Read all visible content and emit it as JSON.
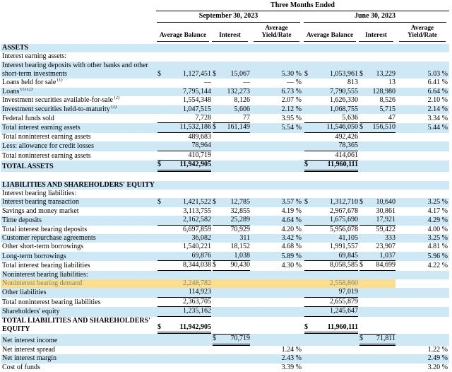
{
  "table": {
    "title": "Three Months Ended",
    "periods": [
      {
        "label": "September 30, 2023"
      },
      {
        "label": "June 30, 2023"
      }
    ],
    "columns": [
      "Average Balance",
      "Interest",
      "Average Yield/Rate"
    ],
    "colors": {
      "row_stripe_blue": "#cfe8f6",
      "highlight_yellow": "#fbdf8e",
      "highlight_text": "#858072",
      "rule_black": "#000000"
    },
    "rows": [
      {
        "label": "ASSETS",
        "bold": true,
        "bg": "b"
      },
      {
        "label": "Interest earning assets:",
        "bg": "w"
      },
      {
        "label": "Interest bearing deposits with other banks and other short-term investments",
        "bg": "b",
        "cells": [
          "$",
          "1,127,451",
          "$",
          "15,067",
          "5.30 %",
          "$",
          "1,053,961",
          "$",
          "13,229",
          "5.03 %"
        ]
      },
      {
        "label": "Loans held for sale",
        "sup": "(1)",
        "bg": "w",
        "cells": [
          "",
          "—",
          "",
          "—",
          "— %",
          "",
          "813",
          "",
          "13",
          "6.41 %"
        ]
      },
      {
        "label": "Loans",
        "sup": "(1) (2)",
        "bg": "b",
        "cells": [
          "",
          "7,795,144",
          "",
          "132,273",
          "6.73 %",
          "",
          "7,790,555",
          "",
          "128,980",
          "6.64 %"
        ]
      },
      {
        "label": "Investment securities available-for-sale",
        "sup": "(2)",
        "bg": "w",
        "cells": [
          "",
          "1,554,348",
          "",
          "8,126",
          "2.07 %",
          "",
          "1,626,330",
          "",
          "8,526",
          "2.10 %"
        ]
      },
      {
        "label": "Investment securities held-to-maturity",
        "sup": "(2)",
        "bg": "b",
        "cells": [
          "",
          "1,047,515",
          "",
          "5,606",
          "2.12 %",
          "",
          "1,068,755",
          "",
          "5,715",
          "2.14 %"
        ]
      },
      {
        "label": "Federal funds sold",
        "bg": "w",
        "cells": [
          "",
          "7,728",
          "",
          "77",
          "3.95 %",
          "",
          "5,636",
          "",
          "47",
          "3.34 %"
        ],
        "u": {
          "b1": "s",
          "i1": "s",
          "b2": "s",
          "i2": "s"
        }
      },
      {
        "label": "Total interest earning assets",
        "bg": "b",
        "cells": [
          "",
          "11,532,186",
          "$",
          "161,149",
          "5.54 %",
          "",
          "11,546,050",
          "$",
          "156,510",
          "5.44 %"
        ],
        "u": {
          "b1": "s",
          "i1": "s",
          "b2": "s",
          "i2": "s"
        }
      },
      {
        "label": "Total noninterest earning assets",
        "bg": "w",
        "cells": [
          "",
          "489,683",
          "",
          "",
          "",
          "",
          "492,426",
          "",
          "",
          ""
        ]
      },
      {
        "label": "Less: allowance for credit losses",
        "bg": "b",
        "cells": [
          "",
          "78,964",
          "",
          "",
          "",
          "",
          "78,365",
          "",
          "",
          ""
        ],
        "u": {
          "b1": "s",
          "b2": "s"
        }
      },
      {
        "label": "Total noninterest earning assets",
        "bg": "w",
        "cells": [
          "",
          "410,719",
          "",
          "",
          "",
          "",
          "414,061",
          "",
          "",
          ""
        ],
        "u": {
          "b1": "s",
          "b2": "s"
        }
      },
      {
        "label": "TOTAL ASSETS",
        "bold": true,
        "bg": "b",
        "cells": [
          "$",
          "11,942,905",
          "",
          "",
          "",
          "$",
          "11,960,111",
          "",
          "",
          ""
        ],
        "u": {
          "b1": "d",
          "b2": "d"
        }
      },
      {
        "spacer": true,
        "bg": "w"
      },
      {
        "label": "LIABILITIES AND SHAREHOLDERS' EQUITY",
        "bold": true,
        "bg": "b"
      },
      {
        "label": "Interest bearing liabilities:",
        "bg": "w"
      },
      {
        "label": "Interest bearing transaction",
        "bg": "b",
        "cells": [
          "$",
          "1,421,522",
          "$",
          "12,785",
          "3.57 %",
          "$",
          "1,312,710",
          "$",
          "10,640",
          "3.25 %"
        ]
      },
      {
        "label": "Savings and money market",
        "bg": "w",
        "cells": [
          "",
          "3,113,755",
          "",
          "32,855",
          "4.19 %",
          "",
          "2,967,678",
          "",
          "30,861",
          "4.17 %"
        ]
      },
      {
        "label": "Time deposits",
        "bg": "b",
        "cells": [
          "",
          "2,162,582",
          "",
          "25,289",
          "4.64 %",
          "",
          "1,675,690",
          "",
          "17,921",
          "4.29 %"
        ],
        "u": {
          "b1": "s",
          "i1": "s",
          "b2": "s",
          "i2": "s"
        }
      },
      {
        "label": "Total interest bearing deposits",
        "bg": "w",
        "cells": [
          "",
          "6,697,859",
          "",
          "70,929",
          "4.20 %",
          "",
          "5,956,078",
          "",
          "59,422",
          "4.00 %"
        ]
      },
      {
        "label": "Customer repurchase agreements",
        "bg": "b",
        "cells": [
          "",
          "36,082",
          "",
          "311",
          "3.42 %",
          "",
          "41,105",
          "",
          "333",
          "3.25 %"
        ]
      },
      {
        "label": "Other short-term borrowings",
        "bg": "w",
        "cells": [
          "",
          "1,540,221",
          "",
          "18,152",
          "4.68 %",
          "",
          "1,991,557",
          "",
          "23,907",
          "4.81 %"
        ]
      },
      {
        "label": "Long-term borrowings",
        "bg": "b",
        "cells": [
          "",
          "69,876",
          "",
          "1,038",
          "5.89 %",
          "",
          "69,845",
          "",
          "1,037",
          "5.96 %"
        ],
        "u": {
          "b1": "s",
          "i1": "s",
          "b2": "s",
          "i2": "s"
        }
      },
      {
        "label": "Total interest bearing liabilities",
        "bg": "w",
        "cells": [
          "",
          "8,344,038",
          "$",
          "90,430",
          "4.30 %",
          "",
          "8,058,585",
          "$",
          "84,699",
          "4.22 %"
        ],
        "u": {
          "b1": "s",
          "i1": "s",
          "b2": "s",
          "i2": "s"
        }
      },
      {
        "label": "Noninterest bearing liabilities:",
        "bg": "b"
      },
      {
        "label": "Noninterest bearing demand",
        "bg": "hl",
        "highlight": true,
        "cells": [
          "",
          "2,248,782",
          "",
          "",
          "",
          "",
          "2,558,860",
          "",
          "",
          ""
        ]
      },
      {
        "label": "Other liabilities",
        "bg": "b",
        "cells": [
          "",
          "114,923",
          "",
          "",
          "",
          "",
          "97,019",
          "",
          "",
          ""
        ],
        "u": {
          "b1": "s",
          "b2": "s"
        }
      },
      {
        "label": "Total noninterest bearing liabilities",
        "bg": "w",
        "cells": [
          "",
          "2,363,705",
          "",
          "",
          "",
          "",
          "2,655,879",
          "",
          "",
          ""
        ],
        "u": {
          "b1": "s",
          "b2": "s"
        }
      },
      {
        "label": "Shareholders' equity",
        "bg": "b",
        "cells": [
          "",
          "1,235,162",
          "",
          "",
          "",
          "",
          "1,245,647",
          "",
          "",
          ""
        ],
        "u": {
          "b1": "s",
          "b2": "s"
        }
      },
      {
        "label": "TOTAL LIABILITIES AND SHAREHOLDERS' EQUITY",
        "bold": true,
        "bg": "w",
        "cells": [
          "$",
          "11,942,905",
          "",
          "",
          "",
          "$",
          "11,960,111",
          "",
          "",
          ""
        ],
        "u": {
          "b1": "d",
          "b2": "d"
        }
      },
      {
        "label": "Net interest income",
        "bg": "b",
        "cells": [
          "",
          "",
          "$",
          "70,719",
          "",
          "",
          "",
          "$",
          "71,811",
          ""
        ],
        "u": {
          "i1": "d",
          "i2": "d"
        },
        "t": {
          "i1": true,
          "i2": true
        }
      },
      {
        "label": "Net interest spread",
        "bg": "w",
        "cells": [
          "",
          "",
          "",
          "",
          "1.24 %",
          "",
          "",
          "",
          "",
          "1.22 %"
        ]
      },
      {
        "label": "Net interest margin",
        "bg": "b",
        "cells": [
          "",
          "",
          "",
          "",
          "2.43 %",
          "",
          "",
          "",
          "",
          "2.49 %"
        ]
      },
      {
        "label": "Cost of funds",
        "bg": "w",
        "cells": [
          "",
          "",
          "",
          "",
          "3.39 %",
          "",
          "",
          "",
          "",
          "3.20 %"
        ]
      }
    ]
  }
}
